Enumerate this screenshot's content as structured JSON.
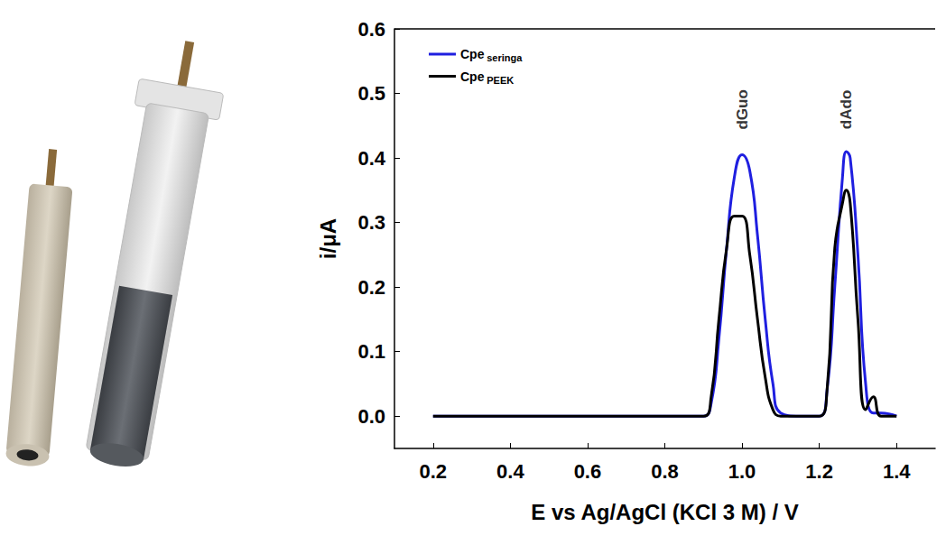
{
  "chart_data": {
    "type": "line",
    "x_label": "E vs Ag/AgCl (KCl 3 M) / V",
    "y_label": "i/μA",
    "x": [
      0.2,
      0.4,
      0.6,
      0.8,
      0.9,
      0.92,
      0.94,
      0.96,
      0.98,
      1.0,
      1.02,
      1.04,
      1.06,
      1.08,
      1.1,
      1.15,
      1.2,
      1.22,
      1.24,
      1.26,
      1.27,
      1.28,
      1.3,
      1.32,
      1.34,
      1.36,
      1.4
    ],
    "series": [
      {
        "name": "Cpe seringa",
        "color": "#1f1fe0",
        "values": [
          0,
          0,
          0,
          0,
          0,
          0.02,
          0.12,
          0.26,
          0.37,
          0.405,
          0.38,
          0.28,
          0.15,
          0.05,
          0.005,
          0,
          0,
          0.04,
          0.2,
          0.37,
          0.41,
          0.4,
          0.25,
          0.05,
          0.005,
          0.005,
          0
        ]
      },
      {
        "name": "Cpe PEEK",
        "color": "#000000",
        "values": [
          0,
          0,
          0,
          0,
          0,
          0.03,
          0.15,
          0.26,
          0.31,
          0.31,
          0.25,
          0.15,
          0.06,
          0.01,
          0,
          0,
          0,
          0.04,
          0.26,
          0.33,
          0.35,
          0.33,
          0.15,
          0.01,
          0.03,
          0,
          0
        ]
      }
    ],
    "annotations": [
      {
        "text": "dGuo",
        "x": 1.0,
        "y": 0.475
      },
      {
        "text": "dAdo",
        "x": 1.27,
        "y": 0.475
      }
    ],
    "xlim": [
      0.1,
      1.5
    ],
    "xticks": [
      0.2,
      0.4,
      0.6,
      0.8,
      1.0,
      1.2,
      1.4
    ],
    "ylim": [
      -0.05,
      0.6
    ],
    "yticks": [
      0.0,
      0.1,
      0.2,
      0.3,
      0.4,
      0.5,
      0.6
    ],
    "grid": false,
    "legend": "upper left"
  }
}
